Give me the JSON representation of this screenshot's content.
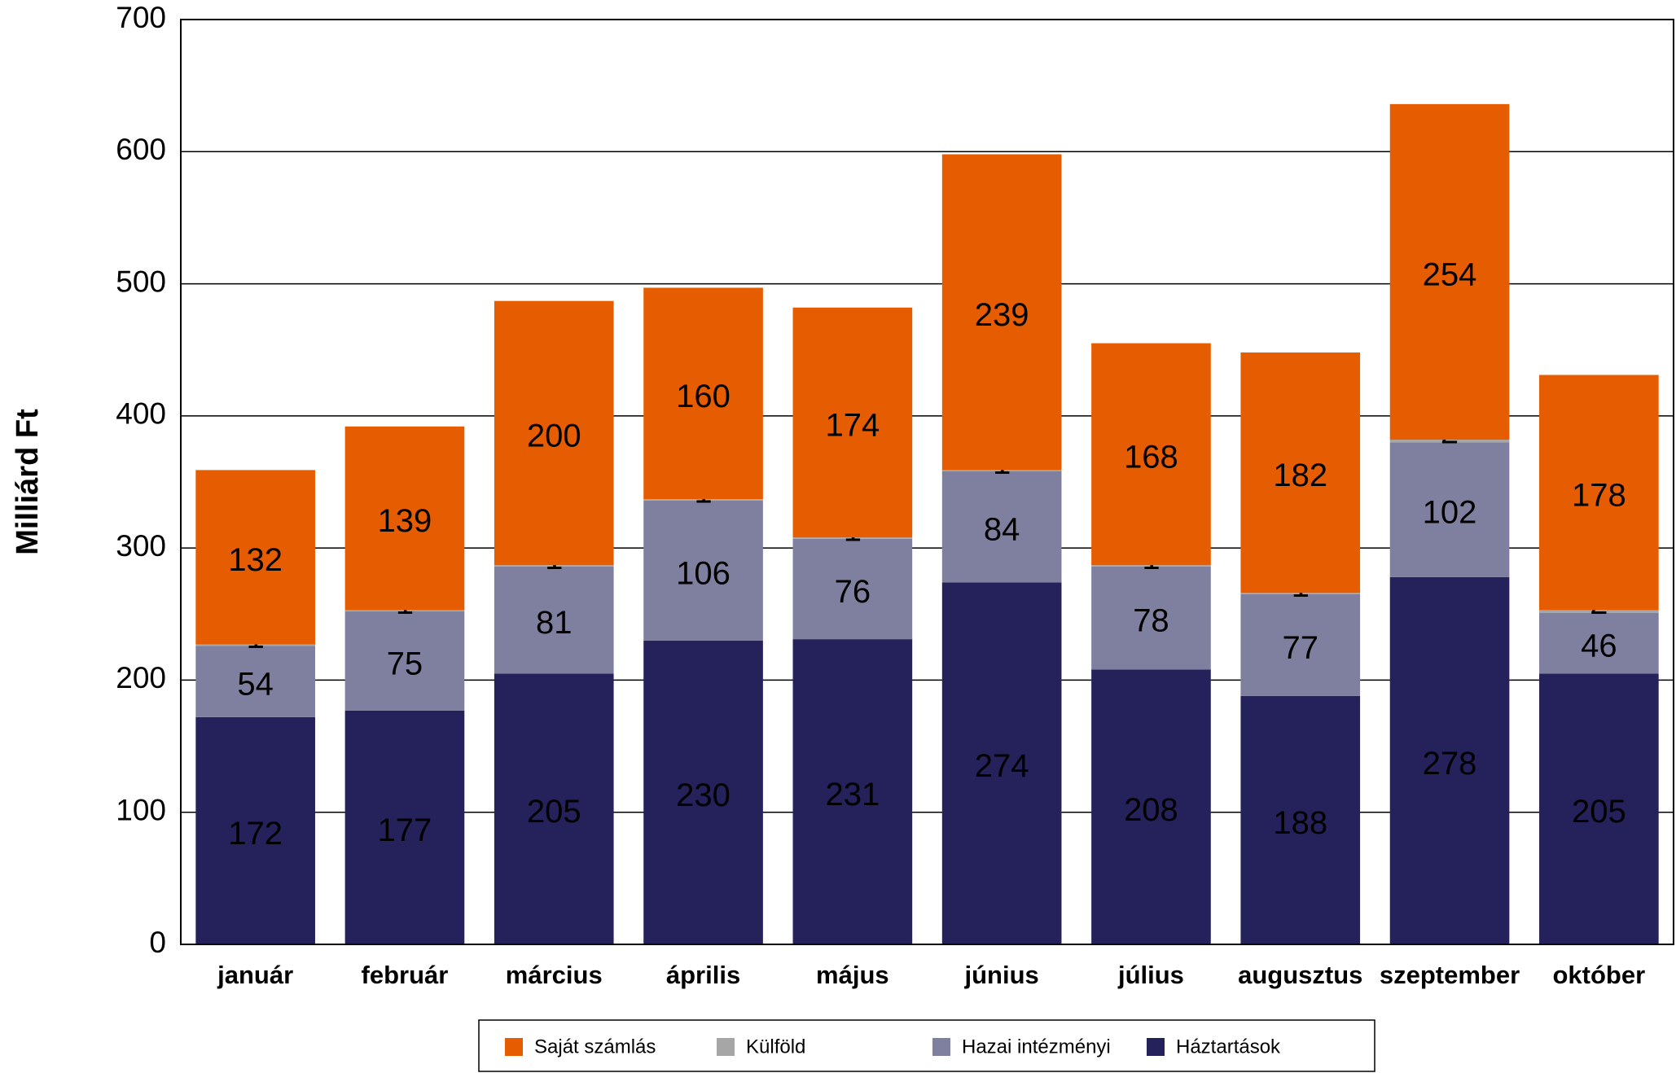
{
  "chart_data": {
    "type": "bar",
    "stacked": true,
    "y_axis_label": "Milliárd Ft",
    "categories": [
      "január",
      "február",
      "március",
      "április",
      "május",
      "június",
      "július",
      "augusztus",
      "szeptember",
      "október"
    ],
    "series": [
      {
        "name": "Háztartások",
        "color": "#25215a",
        "values": [
          172,
          177,
          205,
          230,
          231,
          274,
          208,
          188,
          278,
          205
        ]
      },
      {
        "name": "Hazai intézményi",
        "color": "#7f7f9f",
        "values": [
          54,
          75,
          81,
          106,
          76,
          84,
          78,
          77,
          102,
          46
        ]
      },
      {
        "name": "Külföld",
        "color": "#a6a6a6",
        "values": [
          1,
          1,
          1,
          1,
          1,
          1,
          1,
          1,
          2,
          2
        ]
      },
      {
        "name": "Saját számlás",
        "color": "#e65c00",
        "values": [
          132,
          139,
          200,
          160,
          174,
          239,
          168,
          182,
          254,
          178
        ]
      }
    ],
    "legend_order": [
      "Saját számlás",
      "Külföld",
      "Hazai intézményi",
      "Háztartások"
    ],
    "ylim": [
      0,
      700
    ],
    "yticks": [
      0,
      100,
      200,
      300,
      400,
      500,
      600,
      700
    ],
    "grid": true,
    "legend": "bottom"
  }
}
